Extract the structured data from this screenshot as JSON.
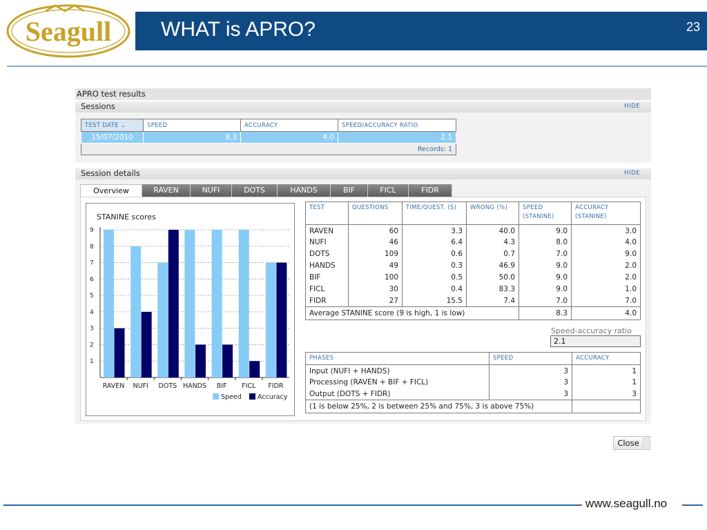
{
  "slide": {
    "title": "WHAT is APRO?",
    "page_number": "23",
    "logo_text": "Seagull",
    "footer_url": "www.seagull.no",
    "colors": {
      "title_bar": "#104a82",
      "logo_gold": "#c9a227",
      "speed_bar": "#87ccf7",
      "accuracy_bar": "#000066"
    }
  },
  "app": {
    "title": "APRO test results",
    "sessions": {
      "header": "Sessions",
      "hide_label": "HIDE",
      "columns": [
        "TEST DATE",
        "SPEED",
        "ACCURACY",
        "SPEED/ACCURACY RATIO"
      ],
      "sort_icon": "chevron-down-icon",
      "row": {
        "date": "15/07/2010",
        "speed": "8.3",
        "accuracy": "4.0",
        "ratio": "2.1"
      },
      "records": "Records: 1"
    },
    "details": {
      "header": "Session details",
      "hide_label": "HIDE",
      "tabs": [
        "Overview",
        "RAVEN",
        "NUFI",
        "DOTS",
        "HANDS",
        "BIF",
        "FICL",
        "FIDR"
      ],
      "active_tab": "Overview"
    },
    "tests_table": {
      "columns": [
        "TEST",
        "QUESTIONS",
        "TIME/QUEST. (S)",
        "WRONG (%)",
        "SPEED (STANINE)",
        "ACCURACY (STANINE)"
      ],
      "rows": [
        [
          "RAVEN",
          "60",
          "3.3",
          "40.0",
          "9.0",
          "3.0"
        ],
        [
          "NUFI",
          "46",
          "6.4",
          "4.3",
          "8.0",
          "4.0"
        ],
        [
          "DOTS",
          "109",
          "0.6",
          "0.7",
          "7.0",
          "9.0"
        ],
        [
          "HANDS",
          "49",
          "0.3",
          "46.9",
          "9.0",
          "2.0"
        ],
        [
          "BIF",
          "100",
          "0.5",
          "50.0",
          "9.0",
          "2.0"
        ],
        [
          "FICL",
          "30",
          "0.4",
          "83.3",
          "9.0",
          "1.0"
        ],
        [
          "FIDR",
          "27",
          "15.5",
          "7.4",
          "7.0",
          "7.0"
        ]
      ],
      "footer": {
        "label": "Average STANINE score (9 is high, 1 is low)",
        "speed": "8.3",
        "accuracy": "4.0"
      }
    },
    "ratio": {
      "label": "Speed-accuracy ratio",
      "value": "2.1"
    },
    "phases_table": {
      "columns": [
        "PHASES",
        "SPEED",
        "ACCURACY"
      ],
      "rows": [
        [
          "Input (NUFI + HANDS)",
          "3",
          "1"
        ],
        [
          "Processing (RAVEN + BIF + FICL)",
          "3",
          "1"
        ],
        [
          "Output (DOTS + FIDR)",
          "3",
          "3"
        ]
      ],
      "footer": "(1 is below 25%, 2 is between 25% and 75%, 3 is above 75%)"
    },
    "close_label": "Close"
  },
  "chart_data": {
    "type": "bar",
    "title": "STANINE scores",
    "categories": [
      "RAVEN",
      "NUFI",
      "DOTS",
      "HANDS",
      "BIF",
      "FICL",
      "FIDR"
    ],
    "series": [
      {
        "name": "Speed",
        "values": [
          9,
          8,
          7,
          9,
          9,
          9,
          7
        ],
        "color": "#87ccf7"
      },
      {
        "name": "Accuracy",
        "values": [
          3,
          4,
          9,
          2,
          2,
          1,
          7
        ],
        "color": "#000066"
      }
    ],
    "yticks": [
      "1",
      "2",
      "3",
      "4",
      "5",
      "6",
      "7",
      "8",
      "9"
    ],
    "ylim": [
      0,
      9
    ],
    "grid": true,
    "legend": "bottom-right"
  }
}
